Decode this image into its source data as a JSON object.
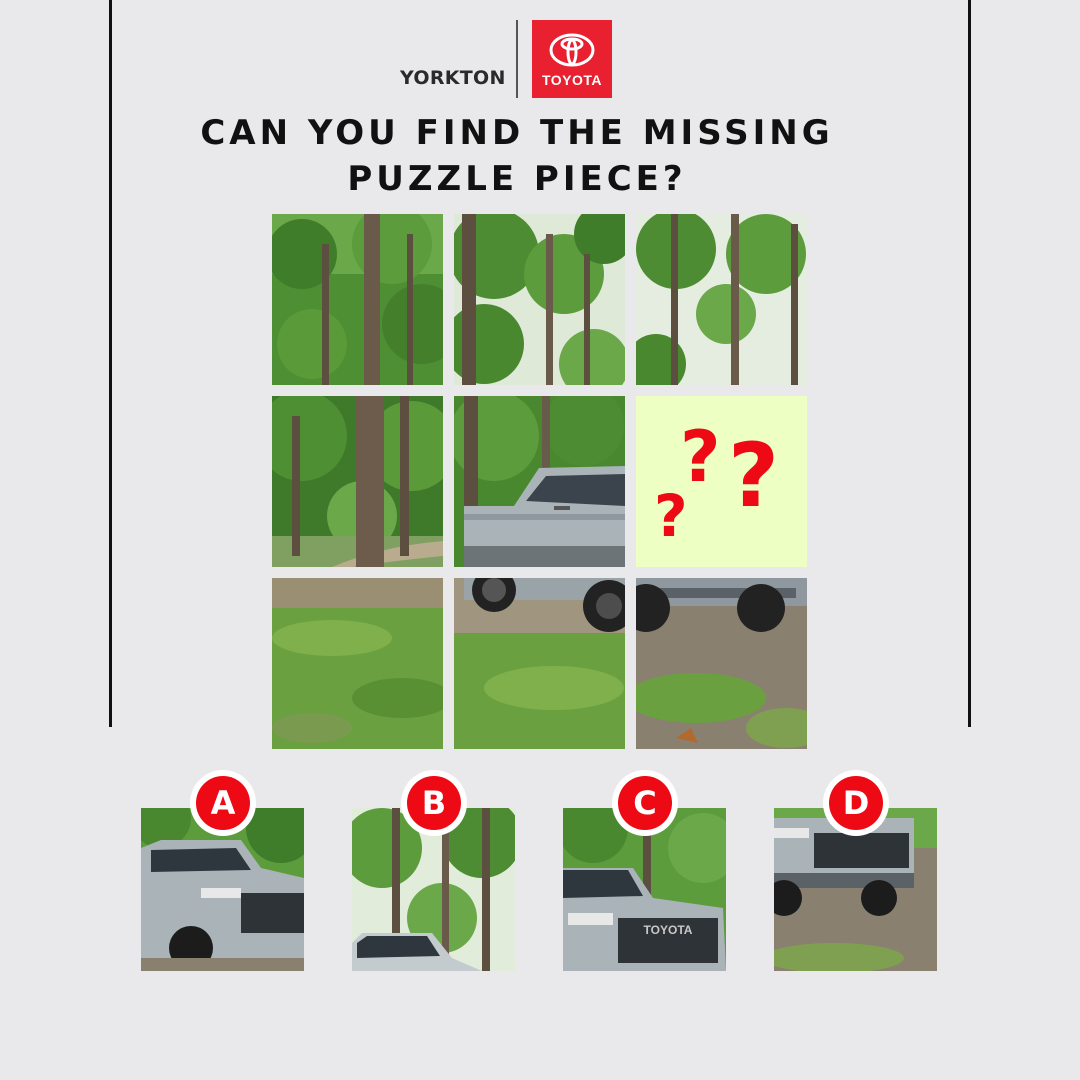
{
  "brand": {
    "dealer": "YORKTON",
    "logo_word": "TOYOTA",
    "logo_color": "#e8202f"
  },
  "title": {
    "line1": "CAN YOU FIND THE MISSING",
    "line2": "PUZZLE PIECE?"
  },
  "puzzle": {
    "rows": 3,
    "cols": 3,
    "missing_tile": {
      "row": 2,
      "col": 3,
      "marks": [
        "?",
        "?",
        "?"
      ]
    },
    "tiles": [
      {
        "row": 1,
        "col": 1,
        "scene": "forest"
      },
      {
        "row": 1,
        "col": 2,
        "scene": "forest"
      },
      {
        "row": 1,
        "col": 3,
        "scene": "forest"
      },
      {
        "row": 2,
        "col": 1,
        "scene": "forest-path"
      },
      {
        "row": 2,
        "col": 2,
        "scene": "truck-side"
      },
      {
        "row": 2,
        "col": 3,
        "scene": "missing"
      },
      {
        "row": 3,
        "col": 1,
        "scene": "grass"
      },
      {
        "row": 3,
        "col": 2,
        "scene": "truck-wheels-grass"
      },
      {
        "row": 3,
        "col": 3,
        "scene": "truck-bumper-grass"
      }
    ]
  },
  "options": [
    {
      "label": "A",
      "scene": "truck-front-angle"
    },
    {
      "label": "B",
      "scene": "forest-truck-roof"
    },
    {
      "label": "C",
      "scene": "truck-grille"
    },
    {
      "label": "D",
      "scene": "truck-bumper"
    }
  ],
  "grille_text": "TOYOTA",
  "colors": {
    "background": "#e9e9eb",
    "accent_red": "#ee0a14",
    "missing_tile": "#eeffc4"
  }
}
